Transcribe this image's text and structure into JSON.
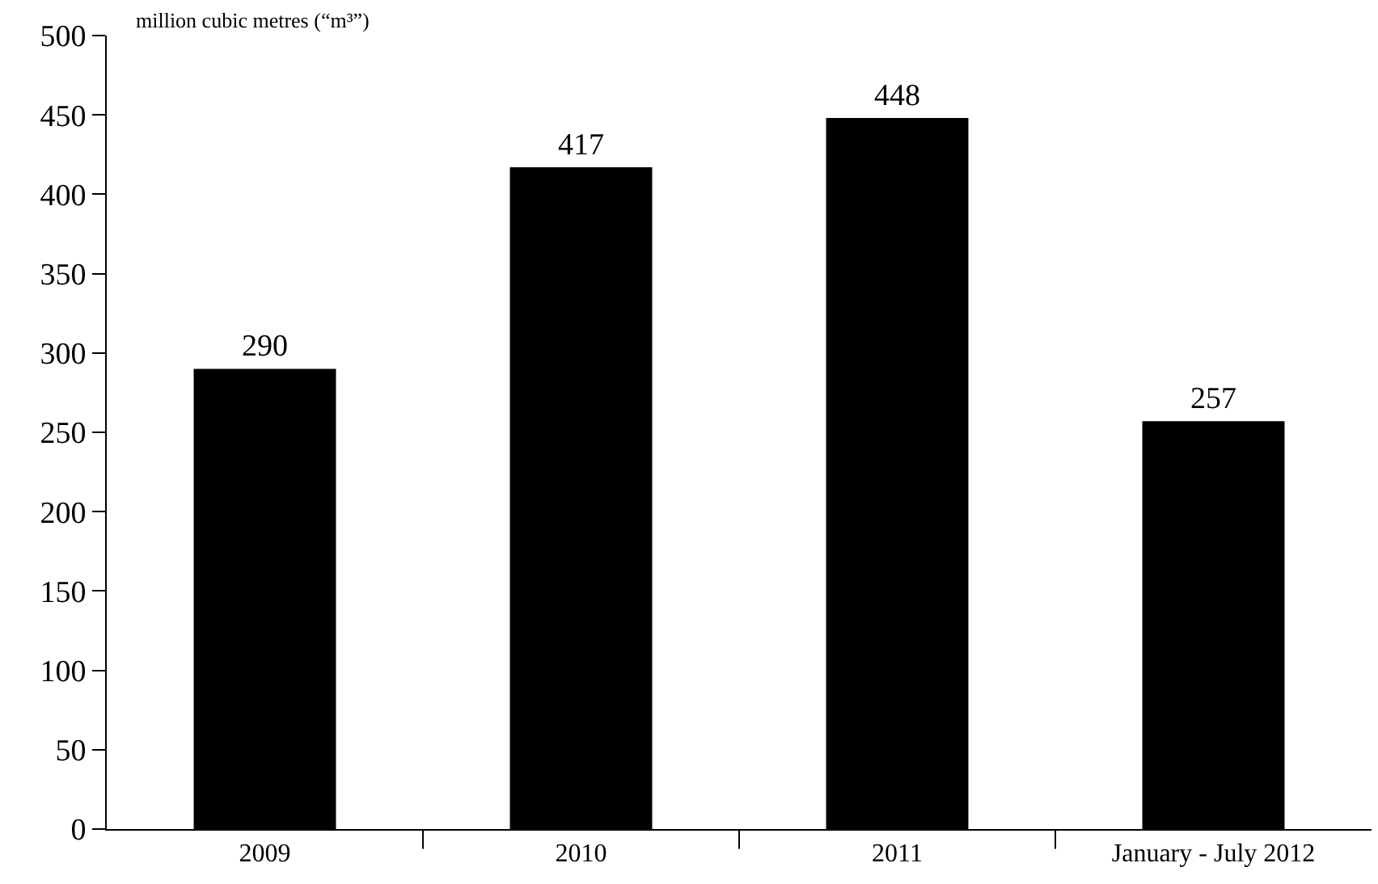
{
  "chart_data": {
    "type": "bar",
    "ylabel": "million cubic metres (“m³”)",
    "categories": [
      "2009",
      "2010",
      "2011",
      "January - July 2012"
    ],
    "values": [
      290,
      417,
      448,
      257
    ],
    "color": "#000000",
    "ylim": [
      0,
      500
    ],
    "yticks": [
      0,
      50,
      100,
      150,
      200,
      250,
      300,
      350,
      400,
      450,
      500
    ],
    "data_labels": true
  }
}
